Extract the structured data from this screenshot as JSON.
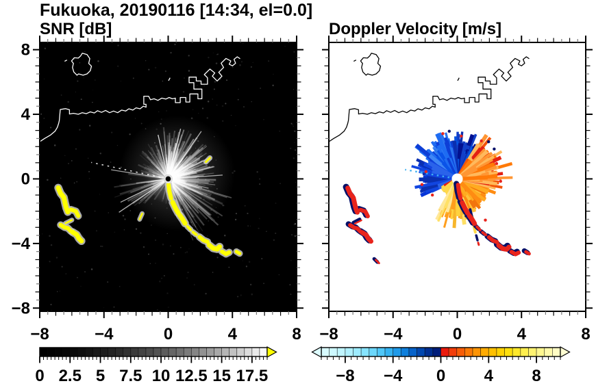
{
  "figure": {
    "title": "Fukuoka, 20190116 [14:34, el=0.0]",
    "render_seed": 20190116
  },
  "chart_data": [
    {
      "id": "snr",
      "type": "heatmap",
      "title": "SNR [dB]",
      "x_range": [
        -8,
        8
      ],
      "y_range": [
        -8,
        8
      ],
      "x_tick_values": [
        -8,
        -4,
        0,
        4,
        8
      ],
      "x_tick_labels": [
        "−8",
        "−4",
        "0",
        "4",
        "8"
      ],
      "y_tick_values": [
        8,
        4,
        0,
        -4,
        -8
      ],
      "y_tick_labels": [
        "8",
        "4",
        "0",
        "−4",
        "−8"
      ],
      "minor_tick_step": 0.5,
      "grid": false,
      "background_color": "#000000",
      "coastline_color": "#ffffff",
      "radar_center": [
        0,
        0
      ],
      "saturated_color": "#ffff00",
      "saturated_halo": "#c8c8c8",
      "colorbar": {
        "orientation": "horizontal",
        "min": 0,
        "max": 18.75,
        "tick_values": [
          0,
          2.5,
          5,
          7.5,
          10,
          12.5,
          15,
          17.5
        ],
        "tick_labels": [
          "0",
          "2.5",
          "5",
          "7.5",
          "10",
          "12.5",
          "15",
          "17.5"
        ],
        "minor_step": 0.3125,
        "over_arrow_color": "#ffff00",
        "cells": [
          "#000000",
          "#020202",
          "#040404",
          "#070707",
          "#0a0a0a",
          "#0e0e0e",
          "#131313",
          "#181818",
          "#1e1e1e",
          "#242424",
          "#2b2b2b",
          "#323232",
          "#3a3a3a",
          "#424242",
          "#4a4a4a",
          "#535353",
          "#5c5c5c",
          "#666666",
          "#707070",
          "#7b7b7b",
          "#858585",
          "#919191",
          "#9c9c9c",
          "#a8a8a8",
          "#b5b5b5",
          "#c1c1c1",
          "#cfcfcf",
          "#dcdcdc",
          "#eaeaea",
          "#f8f8f8"
        ]
      },
      "echo": {
        "ray_sectors": [
          {
            "a0": -70,
            "a1": -15,
            "n": 120,
            "l0": 0.7,
            "l1": 4.3,
            "al0": 0.04,
            "al1": 0.34
          },
          {
            "a0": -15,
            "a1": 40,
            "n": 140,
            "l0": 0.7,
            "l1": 3.0,
            "al0": 0.06,
            "al1": 0.42
          },
          {
            "a0": 40,
            "a1": 96,
            "n": 150,
            "l0": 0.7,
            "l1": 3.3,
            "al0": 0.06,
            "al1": 0.46
          },
          {
            "a0": 96,
            "a1": 176,
            "n": 90,
            "l0": 0.5,
            "l1": 2.6,
            "al0": 0.04,
            "al1": 0.26
          },
          {
            "a0": 186,
            "a1": 226,
            "n": 42,
            "l0": 1.0,
            "l1": 3.6,
            "al0": 0.05,
            "al1": 0.3
          },
          {
            "a0": 226,
            "a1": 290,
            "n": 30,
            "l0": 0.4,
            "l1": 1.6,
            "al0": 0.04,
            "al1": 0.18
          }
        ],
        "bright_rays": [
          {
            "a": 4,
            "l": 3.4
          },
          {
            "a": 27,
            "l": 3.0
          },
          {
            "a": 55,
            "l": 3.6
          },
          {
            "a": 76,
            "l": 3.2
          },
          {
            "a": 103,
            "l": 2.8
          },
          {
            "a": 206,
            "l": 3.3
          },
          {
            "a": 214,
            "l": 3.7
          },
          {
            "a": 171,
            "l": 3.6
          }
        ],
        "dotted_ray": {
          "a": 168,
          "l": 4.9
        },
        "haze": [
          {
            "c": [
              0.55,
              0.35
            ],
            "r": 3.6,
            "op": 0.26
          },
          {
            "c": [
              0.3,
              0.05
            ],
            "r": 1.7,
            "op": 0.34
          }
        ],
        "speckle_n": 260
      }
    },
    {
      "id": "doppler",
      "type": "heatmap",
      "title": "Doppler Velocity [m/s]",
      "x_range": [
        -8,
        8
      ],
      "y_range": [
        -8,
        8
      ],
      "x_tick_values": [
        -8,
        -4,
        0,
        4,
        8
      ],
      "x_tick_labels": [
        "−8",
        "−4",
        "0",
        "4",
        "8"
      ],
      "y_tick_values": [
        8,
        4,
        0,
        -4,
        -8
      ],
      "y_tick_labels": [
        "8",
        "4",
        "0",
        "−4",
        "−8"
      ],
      "minor_tick_step": 0.5,
      "grid": false,
      "background_color": "#ffffff",
      "coastline_color": "#000000",
      "radar_center": [
        0,
        0
      ],
      "saturated_pos_color": "#e8241c",
      "saturated_neg_color": "#041068",
      "colorbar": {
        "orientation": "horizontal",
        "min": -10,
        "max": 10,
        "tick_values": [
          -8,
          -4,
          0,
          4,
          8
        ],
        "tick_labels": [
          "−8",
          "−4",
          "0",
          "4",
          "8"
        ],
        "minor_step": 0.5,
        "under_arrow_color": "#ddfcff",
        "over_arrow_color": "#fffdd2",
        "cells": [
          "#d8fbff",
          "#cdf8ff",
          "#c0f5ff",
          "#b0f0ff",
          "#9debff",
          "#86e3fe",
          "#6cd7fc",
          "#50c7f8",
          "#35b3f2",
          "#1f9ae9",
          "#0f7fdc",
          "#0662c9",
          "#0147af",
          "#002f92",
          "#001d7a",
          "#ea1a0c",
          "#f23d0a",
          "#f75d08",
          "#fb7a06",
          "#fe9404",
          "#ffab02",
          "#ffc001",
          "#ffd203",
          "#ffe00d",
          "#ffe92b",
          "#ffef4e",
          "#fff370",
          "#fff78f",
          "#fffaab",
          "#fffcc4"
        ]
      },
      "echo": {
        "velocity_sectors": [
          {
            "a0": 58,
            "a1": 100,
            "n": 115,
            "l0": 1.1,
            "l1": 2.4,
            "colors": [
              "#021190",
              "#0a2fb0",
              "#123fc8",
              "#0652e0"
            ],
            "sp": 0.07,
            "sl": 3.0
          },
          {
            "a0": 100,
            "a1": 148,
            "n": 130,
            "l0": 1.2,
            "l1": 2.6,
            "colors": [
              "#0a53e8",
              "#1e6cf2",
              "#3f87f5",
              "#0d3ed6",
              "#2b76f0"
            ],
            "sp": 0.08,
            "sl": 3.3
          },
          {
            "a0": 148,
            "a1": 206,
            "n": 90,
            "l0": 0.6,
            "l1": 2.5,
            "colors": [
              "#0636d8",
              "#1145e0",
              "#2a63ea",
              "#0a2fb0"
            ],
            "sp": 0.05,
            "sl": 3.0
          },
          {
            "a0": 206,
            "a1": 240,
            "n": 20,
            "l0": 0.4,
            "l1": 1.2,
            "colors": [
              "#1145e0",
              "#e32013",
              "#ffd84a"
            ],
            "sp": 0.0,
            "sl": 1.4
          },
          {
            "a0": 240,
            "a1": 292,
            "n": 115,
            "l0": 1.0,
            "l1": 2.5,
            "colors": [
              "#ffe066",
              "#ffd23e",
              "#f7b62b",
              "#ff9e1d",
              "#ffe89a"
            ],
            "sp": 0.08,
            "sl": 3.2
          },
          {
            "a0": 292,
            "a1": 345,
            "n": 115,
            "l0": 0.9,
            "l1": 2.2,
            "colors": [
              "#ffab20",
              "#ff8c12",
              "#ffc23a",
              "#f2750d"
            ],
            "sp": 0.05,
            "sl": 2.6
          },
          {
            "a0": 345,
            "a1": 420,
            "n": 150,
            "l0": 1.0,
            "l1": 2.7,
            "colors": [
              "#ff7a08",
              "#f2540a",
              "#e32013",
              "#ff9633",
              "#ffb95c"
            ],
            "sp": 0.1,
            "sl": 3.6
          }
        ],
        "dotted_ray": {
          "a": 170,
          "l": 3.3,
          "color": "#3fb0f0"
        },
        "red_specks": [
          [
            -1.95,
            0.45
          ],
          [
            -2.2,
            -0.35
          ],
          [
            -1.55,
            -1.0
          ],
          [
            0.25,
            2.65
          ],
          [
            1.5,
            2.35
          ],
          [
            2.45,
            0.95
          ],
          [
            2.7,
            -0.15
          ],
          [
            -0.9,
            2.8
          ],
          [
            1.75,
            -2.55
          ]
        ],
        "navy_specks": [
          [
            1.95,
            2.3
          ],
          [
            2.3,
            1.85
          ],
          [
            -0.5,
            2.95
          ],
          [
            0.55,
            -2.3
          ]
        ],
        "tail_strokes": [
          {
            "color": "navy",
            "w": 4.0,
            "pts": [
              [
                0.8,
                -1.9
              ],
              [
                0.92,
                -2.4
              ],
              [
                1.0,
                -2.85
              ]
            ]
          },
          {
            "color": "yellow",
            "w": 4.0,
            "pts": [
              [
                1.02,
                -2.9
              ],
              [
                1.12,
                -3.3
              ]
            ]
          },
          {
            "color": "navy",
            "w": 3.5,
            "pts": [
              [
                1.18,
                -3.5
              ],
              [
                1.26,
                -3.8
              ]
            ]
          },
          {
            "color": "red",
            "w": 3.0,
            "pts": [
              [
                1.3,
                -3.95
              ],
              [
                1.34,
                -4.08
              ]
            ]
          }
        ]
      }
    }
  ],
  "map": {
    "coastline_island": [
      [
        -5.35,
        7.78
      ],
      [
        -5.05,
        7.7
      ],
      [
        -4.88,
        7.45
      ],
      [
        -4.95,
        7.15
      ],
      [
        -4.78,
        6.98
      ],
      [
        -4.85,
        6.7
      ],
      [
        -5.05,
        6.5
      ],
      [
        -5.3,
        6.42
      ],
      [
        -5.58,
        6.5
      ],
      [
        -5.68,
        6.42
      ],
      [
        -5.88,
        6.62
      ],
      [
        -5.96,
        6.9
      ],
      [
        -5.9,
        7.15
      ],
      [
        -6.02,
        7.3
      ],
      [
        -5.85,
        7.5
      ],
      [
        -5.6,
        7.48
      ],
      [
        -5.45,
        7.62
      ],
      [
        -5.35,
        7.78
      ]
    ],
    "coastline_islet": [
      [
        -6.45,
        7.28
      ],
      [
        -6.3,
        7.36
      ]
    ],
    "coast_dash": [
      [
        0.02,
        6.08
      ],
      [
        0.12,
        6.26
      ]
    ],
    "coastline_main": [
      [
        -8.15,
        2.2
      ],
      [
        -7.7,
        2.5
      ],
      [
        -7.35,
        2.7
      ],
      [
        -7.05,
        2.95
      ],
      [
        -6.9,
        3.2
      ],
      [
        -6.82,
        3.45
      ],
      [
        -6.78,
        3.62
      ],
      [
        -6.72,
        4.3
      ],
      [
        -6.4,
        4.35
      ],
      [
        -6.15,
        4.28
      ],
      [
        -6.15,
        4.02
      ],
      [
        -5.9,
        4.06
      ],
      [
        -5.6,
        4.0
      ],
      [
        -5.35,
        4.1
      ],
      [
        -5.1,
        4.04
      ],
      [
        -4.85,
        4.15
      ],
      [
        -4.6,
        4.08
      ],
      [
        -4.4,
        4.22
      ],
      [
        -4.15,
        4.12
      ],
      [
        -3.9,
        4.24
      ],
      [
        -3.65,
        4.1
      ],
      [
        -3.4,
        4.2
      ],
      [
        -3.15,
        4.1
      ],
      [
        -2.9,
        4.26
      ],
      [
        -2.65,
        4.2
      ],
      [
        -2.45,
        4.34
      ],
      [
        -2.2,
        4.26
      ],
      [
        -2.0,
        4.4
      ],
      [
        -1.75,
        4.34
      ],
      [
        -1.55,
        4.5
      ],
      [
        -1.38,
        4.44
      ],
      [
        -1.38,
        4.62
      ],
      [
        -1.52,
        4.62
      ],
      [
        -1.52,
        5.12
      ],
      [
        -1.22,
        5.12
      ],
      [
        -1.1,
        4.9
      ],
      [
        -0.88,
        4.96
      ],
      [
        -0.64,
        4.86
      ],
      [
        -0.4,
        5.0
      ],
      [
        -0.15,
        4.94
      ],
      [
        0.06,
        5.04
      ],
      [
        0.26,
        4.96
      ],
      [
        0.45,
        5.0
      ],
      [
        0.45,
        4.72
      ],
      [
        0.75,
        4.72
      ],
      [
        0.75,
        5.04
      ],
      [
        1.1,
        5.04
      ],
      [
        1.1,
        4.76
      ],
      [
        1.35,
        4.76
      ],
      [
        1.35,
        5.26
      ],
      [
        1.85,
        5.26
      ],
      [
        1.85,
        4.96
      ],
      [
        2.1,
        4.96
      ],
      [
        2.1,
        5.56
      ],
      [
        1.6,
        5.56
      ],
      [
        1.6,
        5.96
      ],
      [
        1.3,
        5.96
      ],
      [
        1.3,
        6.3
      ],
      [
        1.75,
        6.3
      ],
      [
        1.75,
        6.06
      ],
      [
        2.05,
        6.06
      ],
      [
        2.05,
        5.86
      ],
      [
        2.45,
        5.86
      ],
      [
        2.45,
        6.26
      ],
      [
        2.25,
        6.46
      ],
      [
        2.6,
        6.8
      ],
      [
        2.9,
        6.56
      ],
      [
        2.75,
        6.36
      ],
      [
        3.05,
        6.06
      ],
      [
        3.35,
        6.36
      ],
      [
        3.15,
        6.6
      ],
      [
        3.45,
        6.9
      ],
      [
        3.3,
        7.16
      ],
      [
        3.6,
        7.46
      ],
      [
        3.9,
        7.3
      ],
      [
        3.8,
        7.1
      ],
      [
        4.0,
        7.0
      ],
      [
        4.2,
        7.16
      ],
      [
        4.1,
        7.4
      ],
      [
        4.3,
        7.56
      ],
      [
        4.48,
        7.44
      ]
    ]
  },
  "hard_targets": {
    "southeast_chain": [
      {
        "w": 6,
        "pts": [
          [
            0.02,
            -0.35
          ],
          [
            0.08,
            -0.8
          ],
          [
            0.18,
            -1.2
          ]
        ]
      },
      {
        "w": 7,
        "pts": [
          [
            0.28,
            -1.45
          ],
          [
            0.45,
            -1.8
          ],
          [
            0.62,
            -2.1
          ]
        ]
      },
      {
        "w": 7,
        "pts": [
          [
            0.72,
            -2.25
          ],
          [
            0.9,
            -2.5
          ],
          [
            1.05,
            -2.75
          ]
        ]
      },
      {
        "w": 4,
        "pts": [
          [
            1.2,
            -2.95
          ],
          [
            1.4,
            -3.15
          ]
        ]
      },
      {
        "w": 4,
        "pts": [
          [
            1.55,
            -3.3
          ],
          [
            1.75,
            -3.45
          ]
        ]
      },
      {
        "w": 6,
        "pts": [
          [
            1.95,
            -3.6
          ],
          [
            2.2,
            -3.8
          ],
          [
            2.45,
            -3.9
          ]
        ]
      },
      {
        "w": 7,
        "pts": [
          [
            2.55,
            -4.1
          ],
          [
            2.8,
            -4.3
          ],
          [
            3.05,
            -4.35
          ],
          [
            3.2,
            -4.2
          ]
        ]
      },
      {
        "w": 6,
        "pts": [
          [
            3.35,
            -4.5
          ],
          [
            3.6,
            -4.65
          ],
          [
            3.8,
            -4.55
          ]
        ]
      },
      {
        "w": 5,
        "pts": [
          [
            4.25,
            -4.5
          ],
          [
            4.45,
            -4.62
          ]
        ]
      }
    ],
    "west_cluster": [
      {
        "w": 7,
        "pts": [
          [
            -6.85,
            -0.55
          ],
          [
            -6.7,
            -0.9
          ],
          [
            -6.5,
            -1.15
          ],
          [
            -6.42,
            -1.5
          ],
          [
            -6.35,
            -1.8
          ],
          [
            -6.25,
            -2.05
          ]
        ]
      },
      {
        "w": 6,
        "pts": [
          [
            -6.05,
            -1.9
          ],
          [
            -5.75,
            -2.0
          ],
          [
            -5.6,
            -2.3
          ]
        ]
      },
      {
        "w": 2.5,
        "pts": [
          [
            -6.4,
            -2.75
          ],
          [
            -6.0,
            -2.55
          ]
        ]
      },
      {
        "w": 6,
        "pts": [
          [
            -6.7,
            -2.85
          ],
          [
            -6.45,
            -3.0
          ],
          [
            -6.25,
            -3.05
          ],
          [
            -6.05,
            -3.25
          ]
        ]
      },
      {
        "w": 7,
        "pts": [
          [
            -5.95,
            -3.3
          ],
          [
            -5.7,
            -3.45
          ],
          [
            -5.55,
            -3.7
          ],
          [
            -5.4,
            -3.85
          ]
        ]
      }
    ],
    "northeast_dash": {
      "w": 3,
      "pts": [
        [
          2.35,
          1.05
        ],
        [
          2.6,
          1.3
        ]
      ]
    },
    "mid_dash": {
      "w": 2.5,
      "pts": [
        [
          -1.78,
          -2.5
        ],
        [
          -1.62,
          -2.15
        ]
      ]
    },
    "west_far_dash": {
      "w": 3,
      "pts": [
        [
          -5.1,
          -5.0
        ],
        [
          -4.9,
          -5.2
        ]
      ]
    }
  }
}
